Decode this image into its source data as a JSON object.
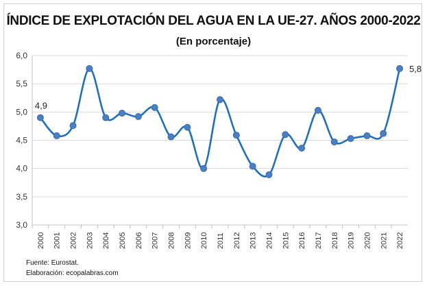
{
  "chart_data": {
    "type": "line",
    "title": "ÍNDICE DE EXPLOTACIÓN DEL AGUA EN LA UE-27. AÑOS 2000-2022",
    "subtitle": "(En porcentaje)",
    "xlabel": "",
    "ylabel": "",
    "ylim": [
      3.0,
      6.0
    ],
    "yticks": [
      "3,0",
      "3,5",
      "4,0",
      "4,5",
      "5,0",
      "5,5",
      "6,0"
    ],
    "grid": true,
    "smooth": true,
    "color": "#1f6fbf",
    "marker_color": "#4a7fc1",
    "categories": [
      "2000",
      "2001",
      "2002",
      "2003",
      "2004",
      "2005",
      "2006",
      "2007",
      "2008",
      "2009",
      "2010",
      "2011",
      "2012",
      "2013",
      "2014",
      "2015",
      "2016",
      "2017",
      "2018",
      "2019",
      "2020",
      "2021",
      "2022"
    ],
    "values": [
      4.9,
      4.58,
      4.76,
      5.77,
      4.9,
      4.98,
      4.92,
      5.08,
      4.56,
      4.73,
      4.0,
      5.22,
      4.59,
      4.04,
      3.89,
      4.6,
      4.36,
      5.03,
      4.47,
      4.53,
      4.58,
      4.62,
      5.77
    ],
    "data_labels": [
      {
        "index": 0,
        "text": "4,9"
      },
      {
        "index": 22,
        "text": "5,8"
      }
    ]
  },
  "footer": {
    "source": "Fuente: Eurostat.",
    "author": "Elaboración: ecopalabras.com"
  }
}
